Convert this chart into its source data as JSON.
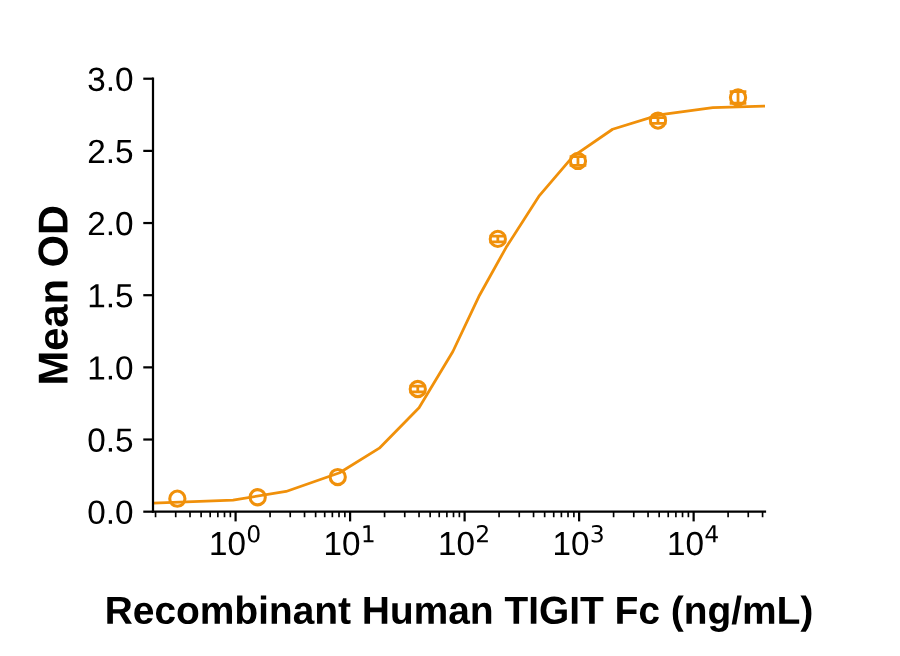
{
  "chart_data": {
    "type": "scatter",
    "xlabel": "Recombinant Human TIGIT Fc (ng/mL)",
    "ylabel": "Mean OD",
    "log": "x",
    "xlim": [
      0.19,
      42000
    ],
    "xticks": [
      {
        "value": 1,
        "label": "10$^{0}$"
      },
      {
        "value": 10,
        "label": "10$^{1}$"
      },
      {
        "value": 100,
        "label": "10$^{2}$"
      },
      {
        "value": 1000,
        "label": "10$^{3}$"
      },
      {
        "value": 10000,
        "label": "10$^{4}$"
      }
    ],
    "ylim": [
      0.0,
      3.0
    ],
    "yticks": [
      {
        "value": 0,
        "label": "0.0"
      },
      {
        "value": 0.5,
        "label": "0.5"
      },
      {
        "value": 1,
        "label": "1.0"
      },
      {
        "value": 1.5,
        "label": "1.5"
      },
      {
        "value": 2,
        "label": "2.0"
      },
      {
        "value": 2.5,
        "label": "2.5"
      },
      {
        "value": 3,
        "label": "3.0"
      }
    ],
    "grid": false,
    "legend": false,
    "series": [
      {
        "color": "#f0900a",
        "marker": "circle",
        "x": [
          0.31,
          1.56,
          7.8,
          39,
          195,
          977,
          4883,
          24414
        ],
        "values": [
          0.09,
          0.1,
          0.24,
          0.85,
          1.89,
          2.43,
          2.71,
          2.87
        ],
        "errors": [
          null,
          null,
          null,
          0.02,
          0.02,
          0.03,
          0.02,
          0.04
        ]
      },
      {
        "type": "line",
        "color": "#f0900a",
        "line_style": "solid",
        "x": [
          0.19,
          0.95,
          2.76,
          8.1,
          18,
          40,
          79,
          135,
          230,
          450,
          880,
          1960,
          5000,
          14700,
          42000
        ],
        "values": [
          0.06,
          0.08,
          0.14,
          0.27,
          0.44,
          0.72,
          1.11,
          1.5,
          1.83,
          2.19,
          2.46,
          2.65,
          2.75,
          2.8,
          2.81
        ]
      }
    ]
  }
}
